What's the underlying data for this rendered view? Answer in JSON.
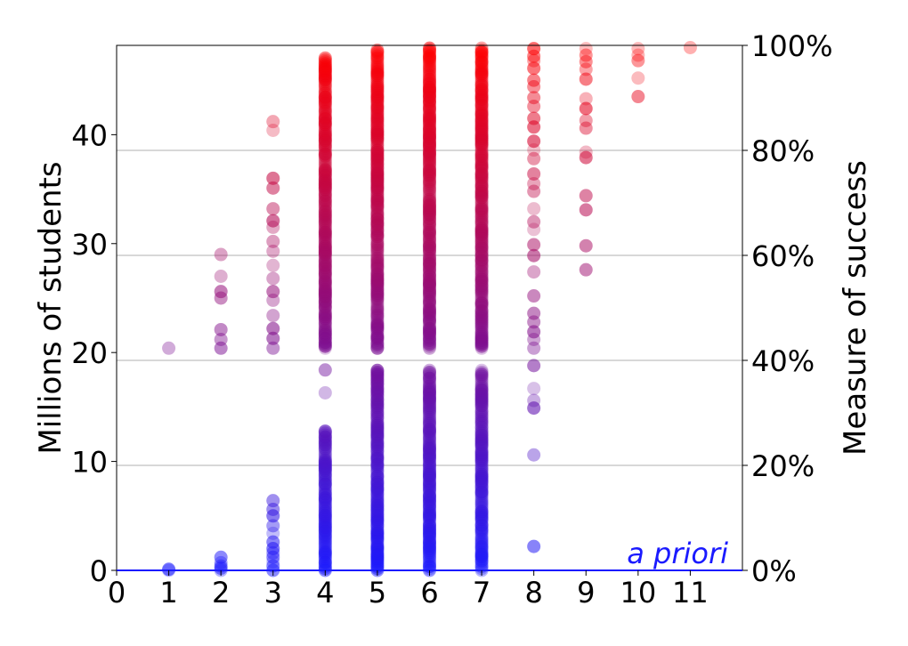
{
  "chart_data": {
    "type": "scatter",
    "title": "",
    "xlabel": "",
    "ylabel": "Millions of students",
    "y2label": "Measure of success",
    "annotation": "a priori",
    "xlim": [
      0,
      12
    ],
    "ylim": [
      0,
      48.2
    ],
    "y2lim": [
      0,
      100
    ],
    "x_ticks": [
      0,
      1,
      2,
      3,
      4,
      5,
      6,
      7,
      8,
      9,
      10,
      11
    ],
    "y_ticks": [
      0,
      10,
      20,
      30,
      40
    ],
    "y2_ticks": [
      "0%",
      "20%",
      "40%",
      "60%",
      "80%",
      "100%"
    ],
    "y2_tick_values": [
      0,
      20,
      40,
      60,
      80,
      100
    ],
    "grid": "horizontal lines at right-axis ticks",
    "baseline_color": "#1a1aff",
    "color_low": "#1a1aff",
    "color_high": "#ff0000",
    "annotation_color": "#1a1aff",
    "series": [
      {
        "x": 1,
        "y": [
          0,
          0.1,
          20.4
        ]
      },
      {
        "x": 2,
        "y": [
          0,
          0.2,
          0.4,
          0.7,
          1.2,
          20.4,
          21.2,
          22.1,
          25.0,
          25.6,
          27.0,
          29.0
        ]
      },
      {
        "x": 3,
        "y": [
          0,
          0.4,
          0.8,
          1.2,
          1.6,
          2.0,
          2.6,
          3.4,
          4.1,
          5.0,
          5.6,
          6.4,
          20.4,
          21.3,
          22.2,
          23.4,
          24.8,
          25.6,
          26.8,
          28.0,
          29.3,
          30.2,
          31.5,
          32.1,
          33.2,
          35.1,
          36.0,
          40.4,
          41.2
        ]
      },
      {
        "x": 4,
        "y": "dense:0-12.8;16.3;18.4;20.4-47.2"
      },
      {
        "x": 5,
        "y": "dense:0-18.5;20.4-47.9"
      },
      {
        "x": 6,
        "y": "dense:0-18.5;20.4-48.0"
      },
      {
        "x": 7,
        "y": "dense:0-18.5;20.4-48.0"
      },
      {
        "x": 8,
        "y": [
          2.2,
          10.6,
          14.9,
          15.6,
          16.7,
          18.8,
          20.4,
          21.2,
          21.9,
          22.8,
          23.6,
          25.2,
          27.4,
          28.9,
          29.9,
          31.3,
          32.0,
          33.2,
          34.8,
          35.5,
          36.4,
          37.8,
          38.6,
          39.4,
          40.7,
          41.5,
          42.6,
          43.4,
          44.4,
          45.0,
          46.1,
          46.8,
          47.2,
          47.9
        ]
      },
      {
        "x": 9,
        "y": [
          27.6,
          29.8,
          33.1,
          34.4,
          37.9,
          38.4,
          40.6,
          41.3,
          42.4,
          43.3,
          45.1,
          46.0,
          46.7,
          47.3,
          47.9
        ]
      },
      {
        "x": 10,
        "y": [
          43.5,
          45.2,
          46.8,
          47.3,
          47.9
        ]
      },
      {
        "x": 11,
        "y": [
          48.0
        ]
      }
    ]
  }
}
